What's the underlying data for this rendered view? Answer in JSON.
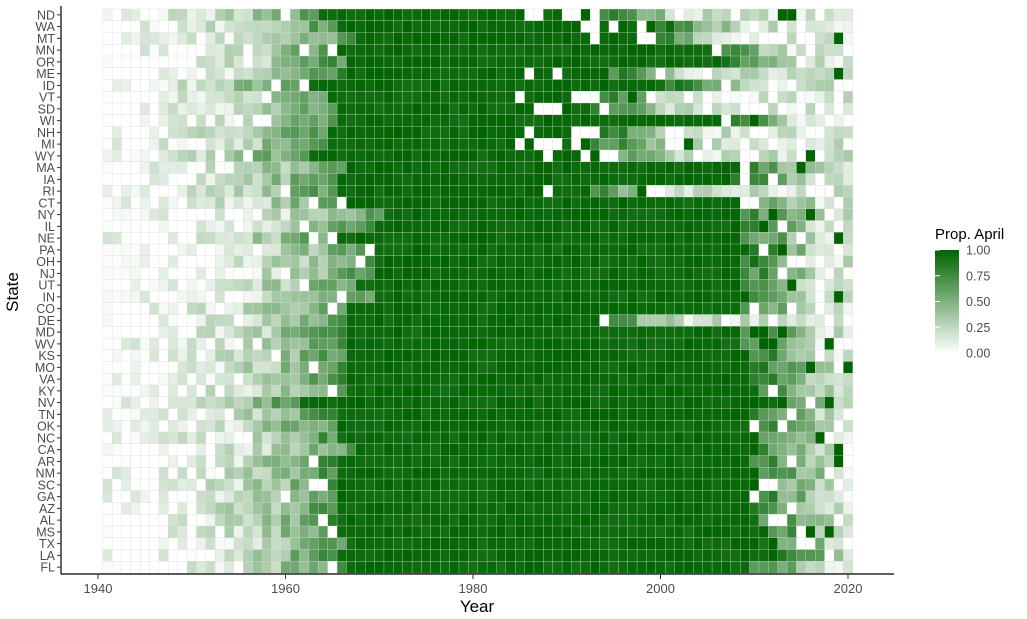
{
  "chart_data": {
    "type": "heatmap",
    "xlabel": "Year",
    "ylabel": "State",
    "x_ticks": [
      1940,
      1960,
      1980,
      2000,
      2020
    ],
    "xlim": [
      1938,
      2024
    ],
    "x_start": 1941,
    "x_end": 2020,
    "y_top_to_bottom": [
      "ND",
      "WA",
      "MT",
      "MN",
      "OR",
      "ME",
      "ID",
      "VT",
      "SD",
      "WI",
      "NH",
      "MI",
      "WY",
      "MA",
      "IA",
      "RI",
      "CT",
      "NY",
      "IL",
      "NE",
      "PA",
      "OH",
      "NJ",
      "UT",
      "IN",
      "CO",
      "DE",
      "MD",
      "WV",
      "KS",
      "MO",
      "VA",
      "KY",
      "NV",
      "TN",
      "OK",
      "NC",
      "CA",
      "AR",
      "NM",
      "SC",
      "GA",
      "AZ",
      "AL",
      "MS",
      "TX",
      "LA",
      "FL"
    ],
    "legend": {
      "title": "Prop. April",
      "labels": [
        "1.00",
        "0.75",
        "0.50",
        "0.25",
        "0.00"
      ],
      "values": [
        1.0,
        0.75,
        0.5,
        0.25,
        0.0
      ],
      "position": "right"
    },
    "color_scale": {
      "low": "#ffffff",
      "high": "#006400"
    },
    "grid": true,
    "approx_transition": {
      "ND": [
        1964,
        1993
      ],
      "WA": [
        1966,
        1999
      ],
      "MT": [
        1968,
        1998
      ],
      "MN": [
        1966,
        2004
      ],
      "OR": [
        1967,
        2006
      ],
      "ME": [
        1967,
        1993
      ],
      "ID": [
        1963,
        2000
      ],
      "VT": [
        1965,
        1992
      ],
      "SD": [
        1966,
        1992
      ],
      "WI": [
        1966,
        2006
      ],
      "NH": [
        1965,
        1993
      ],
      "MI": [
        1965,
        1992
      ],
      "WY": [
        1963,
        1992
      ],
      "MA": [
        1967,
        2008
      ],
      "IA": [
        1966,
        2007
      ],
      "RI": [
        1966,
        1992
      ],
      "CT": [
        1967,
        2008
      ],
      "NY": [
        1971,
        2008
      ],
      "IL": [
        1970,
        2008
      ],
      "NE": [
        1966,
        2008
      ],
      "PA": [
        1970,
        2009
      ],
      "OH": [
        1970,
        2008
      ],
      "NJ": [
        1970,
        2008
      ],
      "UT": [
        1968,
        2008
      ],
      "IN": [
        1970,
        2008
      ],
      "CO": [
        1967,
        2008
      ],
      "DE": [
        1967,
        1993
      ],
      "MD": [
        1967,
        2008
      ],
      "WV": [
        1967,
        2008
      ],
      "KS": [
        1967,
        2009
      ],
      "MO": [
        1967,
        2009
      ],
      "VA": [
        1967,
        2009
      ],
      "KY": [
        1967,
        2009
      ],
      "NV": [
        1962,
        2012
      ],
      "TN": [
        1966,
        2009
      ],
      "OK": [
        1966,
        2009
      ],
      "NC": [
        1966,
        2009
      ],
      "CA": [
        1968,
        2009
      ],
      "AR": [
        1966,
        2009
      ],
      "NM": [
        1966,
        2010
      ],
      "SC": [
        1966,
        2009
      ],
      "GA": [
        1966,
        2009
      ],
      "AZ": [
        1966,
        2009
      ],
      "AL": [
        1966,
        2009
      ],
      "MS": [
        1966,
        2011
      ],
      "TX": [
        1967,
        2010
      ],
      "LA": [
        1966,
        2011
      ],
      "FL": [
        1967,
        2009
      ]
    }
  }
}
